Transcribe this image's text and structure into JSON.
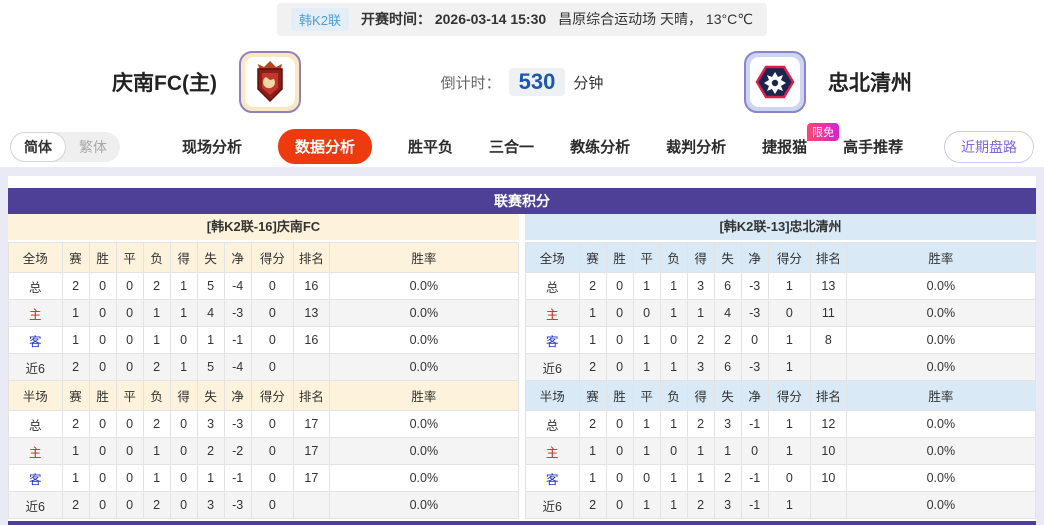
{
  "top_bar": {
    "league_badge": "韩K2联",
    "kickoff": "开赛时间： 2026-03-14 15:30",
    "venue_weather": "昌原综合运动场 天晴， 13°C℃"
  },
  "match_header": {
    "home_name": "庆南FC(主)",
    "away_name": "忠北清州",
    "countdown_label": "倒计时：",
    "countdown_value": "530",
    "countdown_unit": "分钟"
  },
  "nav": {
    "lang_simplified": "简体",
    "lang_traditional": "繁体",
    "tabs": [
      "现场分析",
      "数据分析",
      "胜平负",
      "三合一",
      "教练分析",
      "裁判分析",
      "捷报猫",
      "高手推荐"
    ],
    "active_tab": "数据分析",
    "jiebao_limited_badge": "限免",
    "recent_button": "近期盘路"
  },
  "standings": {
    "title": "联赛积分",
    "home_header": "[韩K2联-16]庆南FC",
    "away_header": "[韩K2联-13]忠北清州",
    "full_columns": [
      "全场",
      "赛",
      "胜",
      "平",
      "负",
      "得",
      "失",
      "净",
      "得分",
      "排名",
      "胜率"
    ],
    "half_columns": [
      "半场",
      "赛",
      "胜",
      "平",
      "负",
      "得",
      "失",
      "净",
      "得分",
      "排名",
      "胜率"
    ],
    "home_full_rows": [
      [
        "总",
        "2",
        "0",
        "0",
        "2",
        "1",
        "5",
        "-4",
        "0",
        "16",
        "0.0%"
      ],
      [
        "主",
        "1",
        "0",
        "0",
        "1",
        "1",
        "4",
        "-3",
        "0",
        "13",
        "0.0%"
      ],
      [
        "客",
        "1",
        "0",
        "0",
        "1",
        "0",
        "1",
        "-1",
        "0",
        "16",
        "0.0%"
      ],
      [
        "近6",
        "2",
        "0",
        "0",
        "2",
        "1",
        "5",
        "-4",
        "0",
        "",
        "0.0%"
      ]
    ],
    "home_half_rows": [
      [
        "总",
        "2",
        "0",
        "0",
        "2",
        "0",
        "3",
        "-3",
        "0",
        "17",
        "0.0%"
      ],
      [
        "主",
        "1",
        "0",
        "0",
        "1",
        "0",
        "2",
        "-2",
        "0",
        "17",
        "0.0%"
      ],
      [
        "客",
        "1",
        "0",
        "0",
        "1",
        "0",
        "1",
        "-1",
        "0",
        "17",
        "0.0%"
      ],
      [
        "近6",
        "2",
        "0",
        "0",
        "2",
        "0",
        "3",
        "-3",
        "0",
        "",
        "0.0%"
      ]
    ],
    "away_full_rows": [
      [
        "总",
        "2",
        "0",
        "1",
        "1",
        "3",
        "6",
        "-3",
        "1",
        "13",
        "0.0%"
      ],
      [
        "主",
        "1",
        "0",
        "0",
        "1",
        "1",
        "4",
        "-3",
        "0",
        "11",
        "0.0%"
      ],
      [
        "客",
        "1",
        "0",
        "1",
        "0",
        "2",
        "2",
        "0",
        "1",
        "8",
        "0.0%"
      ],
      [
        "近6",
        "2",
        "0",
        "1",
        "1",
        "3",
        "6",
        "-3",
        "1",
        "",
        "0.0%"
      ]
    ],
    "away_half_rows": [
      [
        "总",
        "2",
        "0",
        "1",
        "1",
        "2",
        "3",
        "-1",
        "1",
        "12",
        "0.0%"
      ],
      [
        "主",
        "1",
        "0",
        "1",
        "0",
        "1",
        "1",
        "0",
        "1",
        "10",
        "0.0%"
      ],
      [
        "客",
        "1",
        "0",
        "0",
        "1",
        "1",
        "2",
        "-1",
        "0",
        "10",
        "0.0%"
      ],
      [
        "近6",
        "2",
        "0",
        "1",
        "1",
        "2",
        "3",
        "-1",
        "1",
        "",
        "0.0%"
      ]
    ]
  },
  "colors": {
    "section_purple": "#4e3f97",
    "active_tab_orange": "#ee3a0f",
    "home_theme_cream": "#fdf3dc",
    "away_theme_blue": "#d9e9f5",
    "home_row_label_red": "#cc2222",
    "away_row_label_blue": "#2233cc",
    "countdown_blue": "#1b57b1",
    "badge_gradient_start": "#f9486e",
    "badge_gradient_end": "#df1fd3",
    "page_background": "#e9eaf6"
  }
}
